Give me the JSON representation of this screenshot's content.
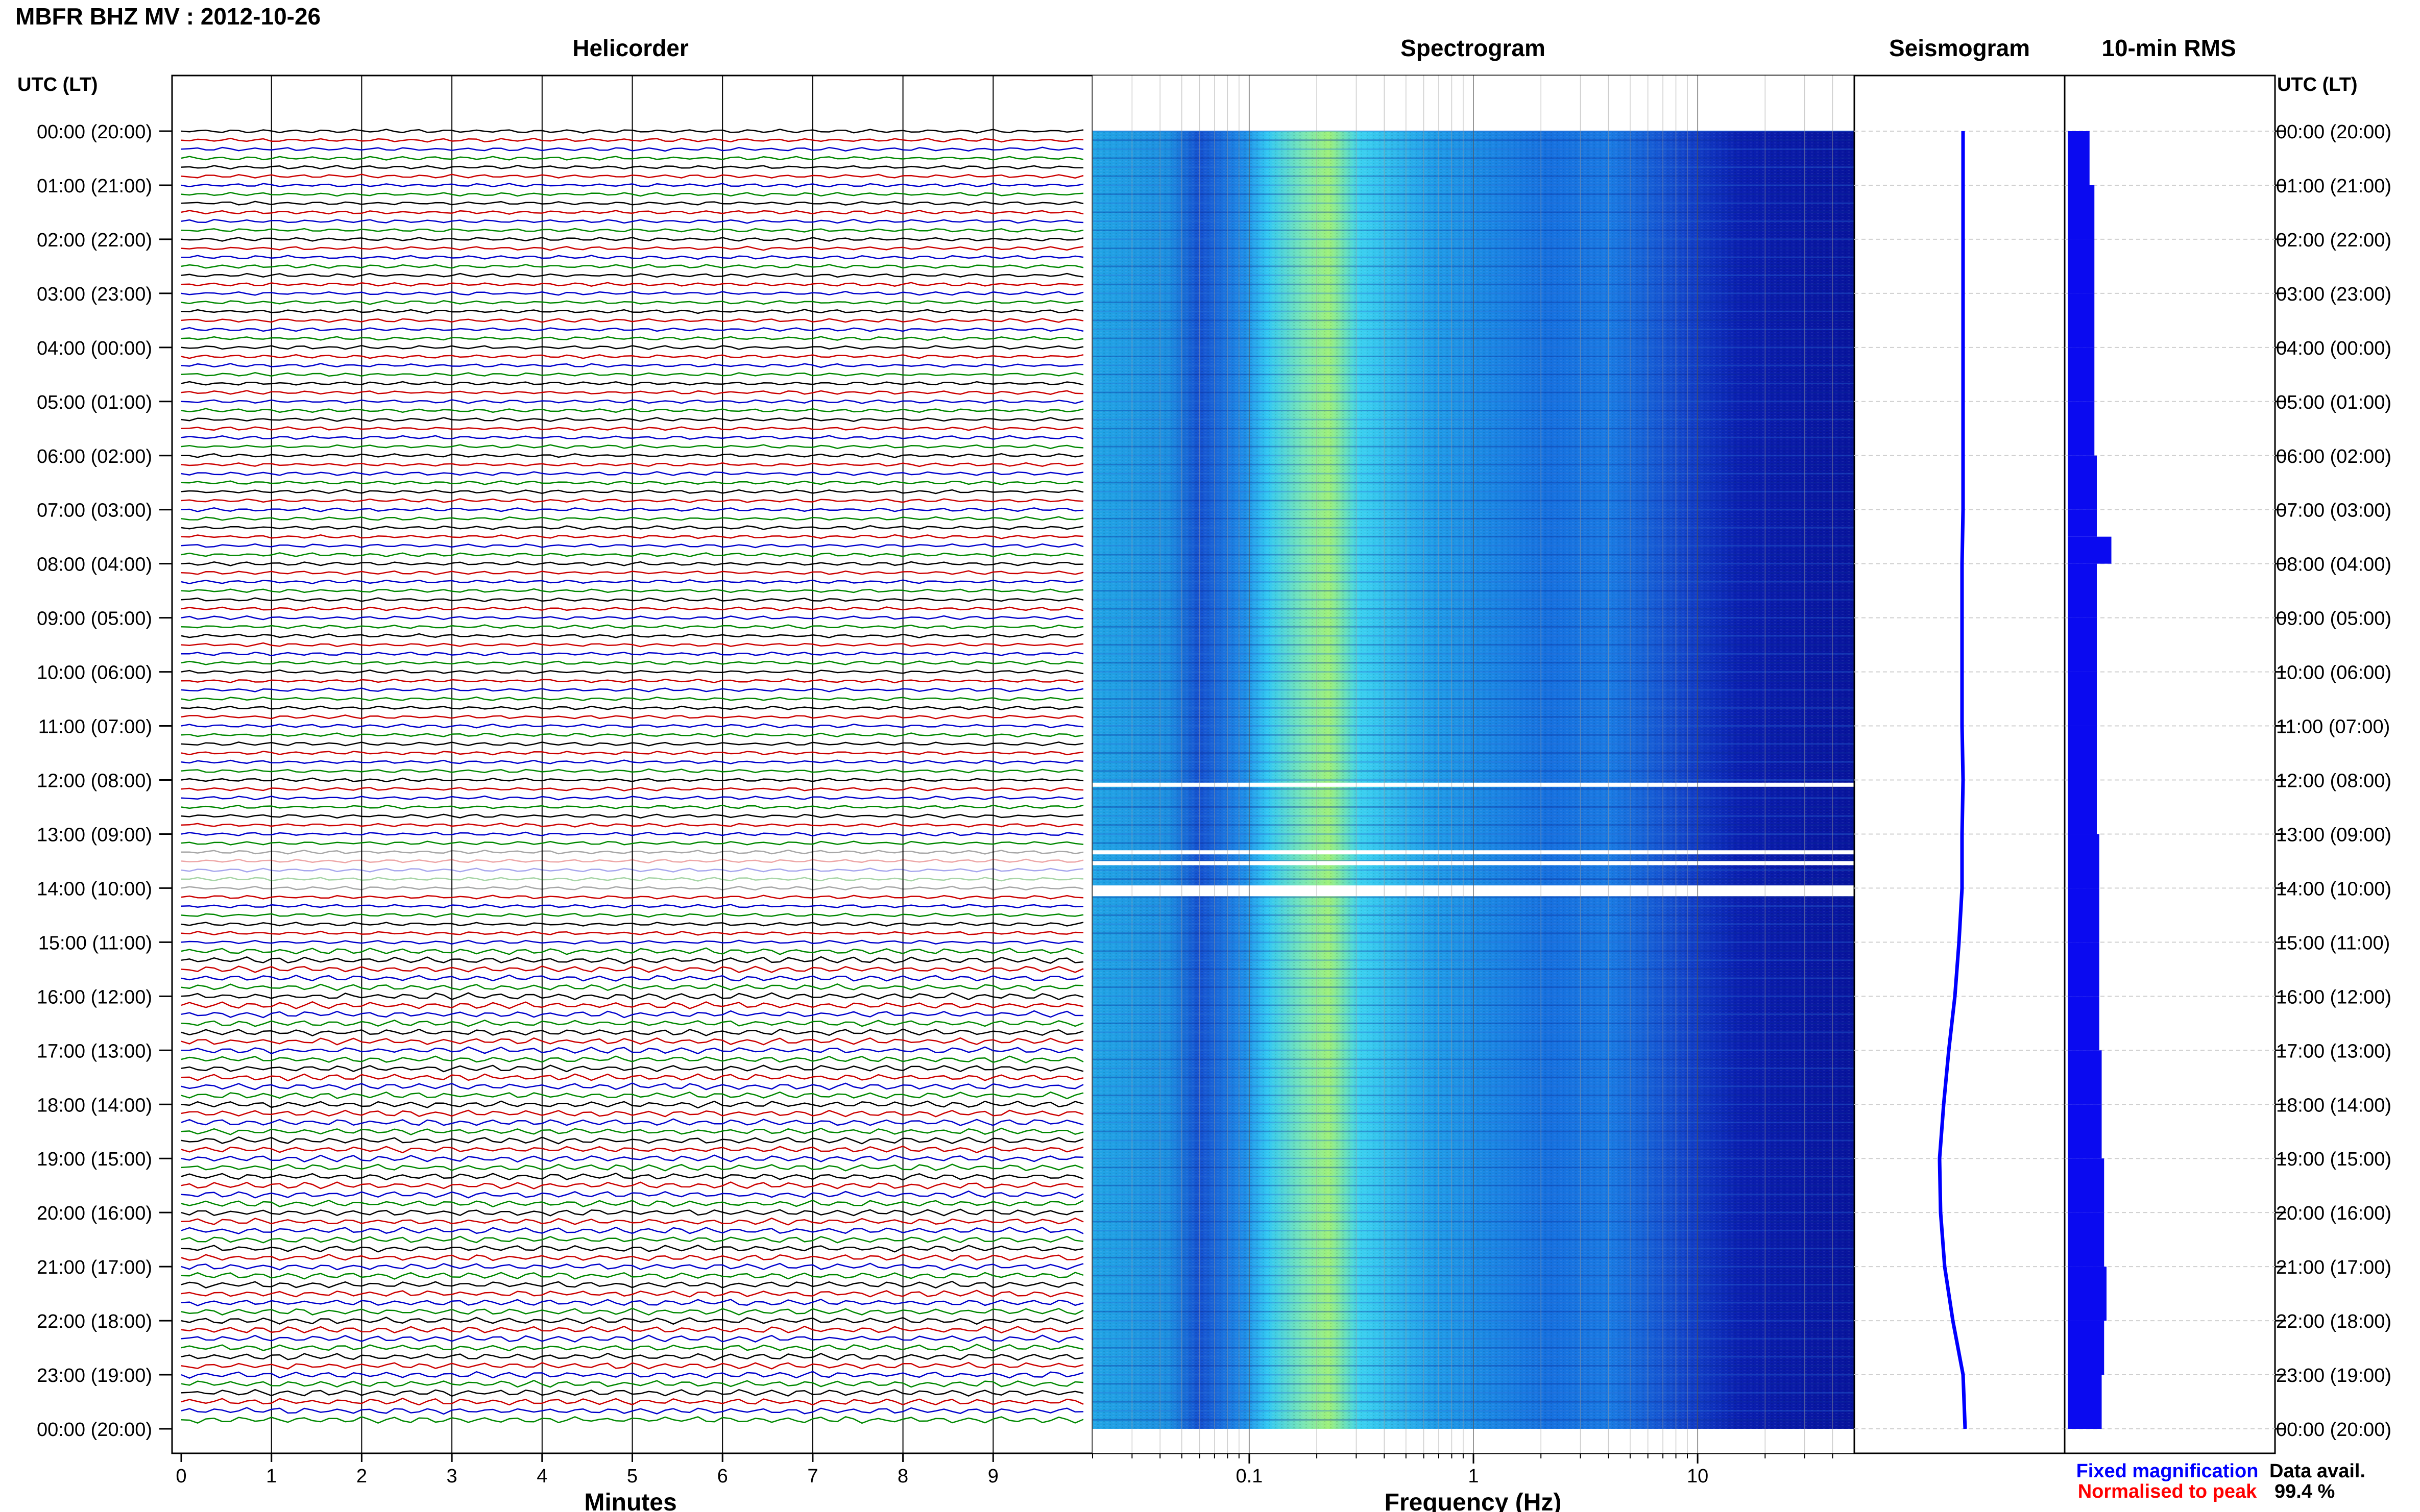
{
  "figure": {
    "title": "MBFR BHZ MV : 2012-10-26",
    "panel_titles": {
      "helicorder": "Helicorder",
      "spectrogram": "Spectrogram",
      "seismogram": "Seismogram",
      "rms": "10-min RMS"
    },
    "time_axis_label_left": "UTC (LT)",
    "time_axis_label_right": "UTC (LT)",
    "legend": {
      "fixed": "Fixed magnification",
      "normalised": "Normalised to peak",
      "data_avail_label": "Data avail.",
      "data_avail_value": "99.4 %"
    },
    "colors": {
      "fixed": "#0000ff",
      "normalised": "#ff0000",
      "trace_cycle": [
        "#000000",
        "#cc0000",
        "#0000cc",
        "#008800"
      ],
      "spec_low": "#00008b",
      "spec_mid": "#00bfff",
      "spec_high": "#ffff66"
    }
  },
  "chart_data": [
    {
      "type": "line",
      "panel": "helicorder",
      "xlabel": "Minutes",
      "xticks": [
        "0",
        "1",
        "2",
        "3",
        "4",
        "5",
        "6",
        "7",
        "8",
        "9"
      ],
      "xlim": [
        0,
        10
      ],
      "yticks": [
        "00:00 (20:00)",
        "01:00 (21:00)",
        "02:00 (22:00)",
        "03:00 (23:00)",
        "04:00 (00:00)",
        "05:00 (01:00)",
        "06:00 (02:00)",
        "07:00 (03:00)",
        "08:00 (04:00)",
        "09:00 (05:00)",
        "10:00 (06:00)",
        "11:00 (07:00)",
        "12:00 (08:00)",
        "13:00 (09:00)",
        "14:00 (10:00)",
        "15:00 (11:00)",
        "16:00 (12:00)",
        "17:00 (13:00)",
        "18:00 (14:00)",
        "19:00 (15:00)",
        "20:00 (16:00)",
        "21:00 (17:00)",
        "22:00 (18:00)",
        "23:00 (19:00)",
        "00:00 (20:00)"
      ],
      "trace_count": 144,
      "gap_hours": [
        13.3,
        14.1
      ]
    },
    {
      "type": "heatmap",
      "panel": "spectrogram",
      "xlabel": "Frequency (Hz)",
      "xscale": "log",
      "xticks": [
        "0.1",
        "1",
        "10"
      ],
      "xlim": [
        0.02,
        50
      ],
      "peak_band_hz": [
        0.15,
        0.25
      ],
      "gaps_hours": [
        12.05,
        13.3,
        13.5,
        14.1
      ]
    },
    {
      "type": "line",
      "panel": "seismogram",
      "note_hours": [
        0,
        1,
        2,
        3,
        4,
        5,
        6,
        7,
        8,
        9,
        10,
        11,
        12,
        13,
        14,
        15,
        16,
        17,
        18,
        19,
        20,
        21,
        22,
        23,
        24
      ],
      "offset": [
        0.0,
        0.0,
        0.0,
        0.0,
        0.0,
        0.0,
        0.0,
        0.0,
        0.05,
        0.05,
        0.05,
        0.05,
        0.0,
        0.05,
        0.05,
        0.2,
        0.4,
        0.7,
        0.95,
        1.15,
        1.1,
        0.9,
        0.5,
        0.0,
        -0.1
      ]
    },
    {
      "type": "bar",
      "panel": "rms",
      "orientation": "horizontal",
      "hours": [
        0,
        1,
        2,
        3,
        4,
        5,
        6,
        7,
        7.5,
        8,
        9,
        10,
        11,
        12,
        13,
        14,
        15,
        16,
        17,
        18,
        19,
        20,
        21,
        22,
        23,
        24
      ],
      "values": [
        0.45,
        0.55,
        0.55,
        0.55,
        0.55,
        0.55,
        0.6,
        0.6,
        0.9,
        0.6,
        0.6,
        0.6,
        0.6,
        0.6,
        0.65,
        0.65,
        0.65,
        0.65,
        0.7,
        0.7,
        0.75,
        0.75,
        0.8,
        0.75,
        0.7,
        0.7
      ]
    }
  ]
}
